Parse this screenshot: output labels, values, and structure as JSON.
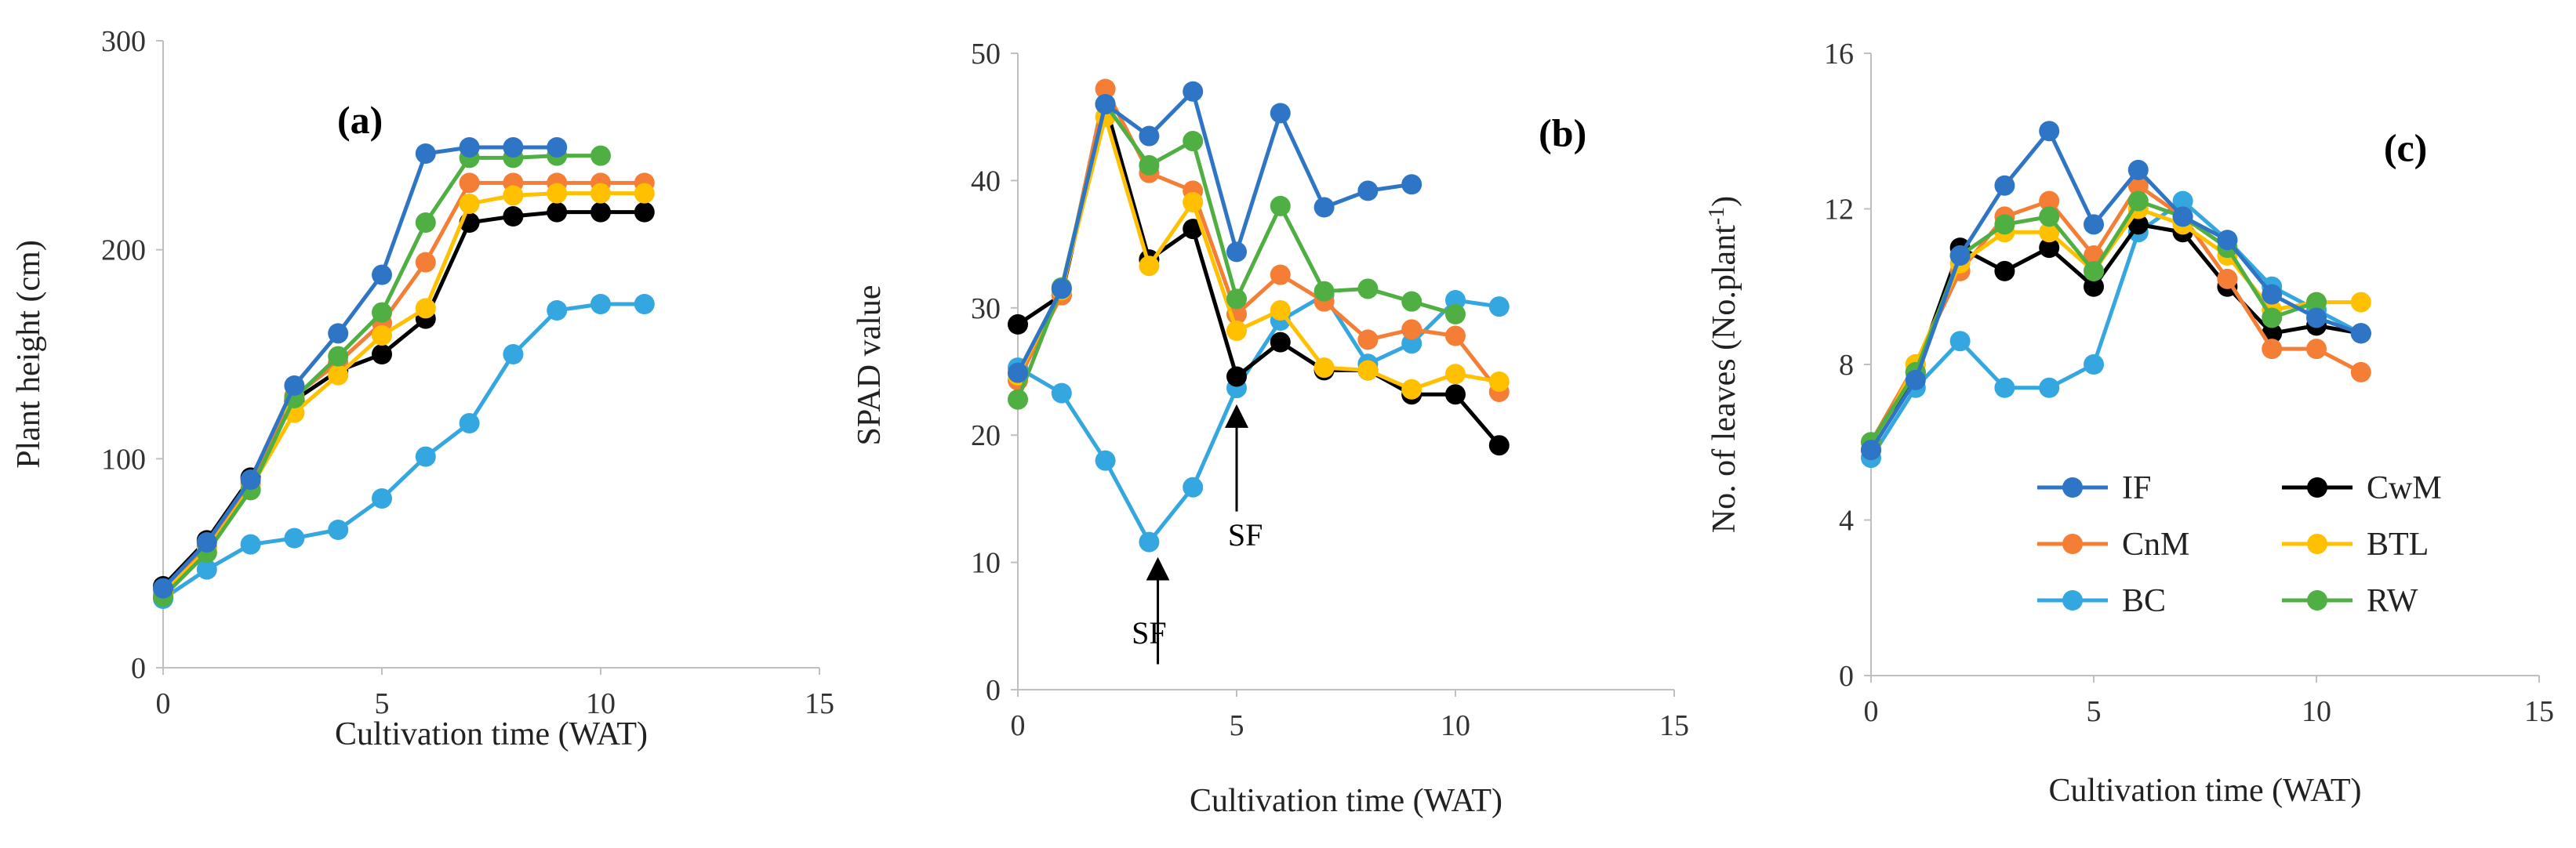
{
  "figure": {
    "legend": [
      {
        "name": "IF",
        "color": "#2E75C6"
      },
      {
        "name": "CwM",
        "color": "#000000"
      },
      {
        "name": "CnM",
        "color": "#F47E36"
      },
      {
        "name": "BTL",
        "color": "#FFC000"
      },
      {
        "name": "BC",
        "color": "#34A7E0"
      },
      {
        "name": "RW",
        "color": "#4FAF42"
      }
    ]
  },
  "chart_data": [
    {
      "type": "line",
      "panel_label": "(a)",
      "xlabel": "Cultivation time (WAT)",
      "ylabel": "Plant height (cm)",
      "xlim": [
        0,
        15
      ],
      "ylim": [
        0,
        300
      ],
      "xticks": [
        0,
        5,
        10,
        15
      ],
      "yticks": [
        0,
        100,
        200,
        300
      ],
      "annotations": [],
      "series": [
        {
          "name": "BC",
          "color": "#34A7E0",
          "x": [
            0,
            1,
            2,
            3,
            4,
            5,
            6,
            7,
            8,
            9,
            10,
            11
          ],
          "values": [
            33,
            47,
            59,
            62,
            66,
            81,
            101,
            117,
            150,
            171,
            174,
            174
          ]
        },
        {
          "name": "CwM",
          "color": "#000000",
          "x": [
            0,
            1,
            2,
            3,
            4,
            5,
            6,
            7,
            8,
            9,
            10,
            11
          ],
          "values": [
            39,
            61,
            91,
            128,
            142,
            150,
            167,
            213,
            216,
            218,
            218,
            218
          ]
        },
        {
          "name": "CnM",
          "color": "#F47E36",
          "x": [
            0,
            1,
            2,
            3,
            4,
            5,
            6,
            7,
            8,
            9,
            10,
            11
          ],
          "values": [
            37,
            58,
            88,
            130,
            146,
            165,
            194,
            232,
            232,
            232,
            232,
            232
          ]
        },
        {
          "name": "BTL",
          "color": "#FFC000",
          "x": [
            0,
            1,
            2,
            3,
            4,
            5,
            6,
            7,
            8,
            9,
            10,
            11
          ],
          "values": [
            36,
            56,
            86,
            122,
            140,
            159,
            172,
            222,
            226,
            227,
            227,
            227
          ]
        },
        {
          "name": "RW",
          "color": "#4FAF42",
          "x": [
            0,
            1,
            2,
            3,
            4,
            5,
            6,
            7,
            8,
            9,
            10
          ],
          "values": [
            34,
            55,
            85,
            129,
            149,
            170,
            213,
            244,
            244,
            245,
            245
          ]
        },
        {
          "name": "IF",
          "color": "#2E75C6",
          "x": [
            0,
            1,
            2,
            3,
            4,
            5,
            6,
            7,
            8,
            9
          ],
          "values": [
            38,
            60,
            90,
            135,
            160,
            188,
            246,
            249,
            249,
            249
          ]
        }
      ]
    },
    {
      "type": "line",
      "panel_label": "(b)",
      "xlabel": "Cultivation time (WAT)",
      "ylabel": "SPAD value",
      "xlim": [
        0,
        15
      ],
      "ylim": [
        0,
        50
      ],
      "xticks": [
        0,
        5,
        10,
        15
      ],
      "yticks": [
        0,
        10,
        20,
        30,
        40,
        50
      ],
      "annotations": [
        {
          "text": "SF",
          "x": 3.0,
          "y": 4.5,
          "arrow_from": [
            3.2,
            2
          ],
          "arrow_to": [
            3.2,
            9.5
          ]
        },
        {
          "text": "SF",
          "x": 5.2,
          "y": 12.2,
          "arrow_from": [
            5.0,
            14
          ],
          "arrow_to": [
            5.0,
            21.5
          ]
        }
      ],
      "series": [
        {
          "name": "BC",
          "color": "#34A7E0",
          "x": [
            0,
            1,
            2,
            3,
            4,
            5,
            6,
            7,
            8,
            9,
            10,
            11
          ],
          "values": [
            25.3,
            23.3,
            18,
            11.6,
            15.9,
            23.7,
            29,
            31,
            25.6,
            27.2,
            30.6,
            30.1
          ]
        },
        {
          "name": "CwM",
          "color": "#000000",
          "x": [
            0,
            1,
            2,
            3,
            4,
            5,
            6,
            7,
            8,
            9,
            10,
            11
          ],
          "values": [
            28.7,
            31,
            46,
            33.8,
            36.2,
            24.6,
            27.3,
            25.1,
            25.1,
            23.2,
            23.2,
            19.2
          ]
        },
        {
          "name": "CnM",
          "color": "#F47E36",
          "x": [
            0,
            1,
            2,
            3,
            4,
            5,
            6,
            7,
            8,
            9,
            10,
            11
          ],
          "values": [
            24.3,
            31,
            47.2,
            40.6,
            39.2,
            29.5,
            32.6,
            30.5,
            27.5,
            28.3,
            27.8,
            23.4
          ]
        },
        {
          "name": "BTL",
          "color": "#FFC000",
          "x": [
            0,
            1,
            2,
            3,
            4,
            5,
            6,
            7,
            8,
            9,
            10,
            11
          ],
          "values": [
            24.7,
            31.4,
            45,
            33.3,
            38.3,
            28.2,
            29.8,
            25.3,
            25.1,
            23.6,
            24.8,
            24.2
          ]
        },
        {
          "name": "RW",
          "color": "#4FAF42",
          "x": [
            0,
            1,
            2,
            3,
            4,
            5,
            6,
            7,
            8,
            9,
            10
          ],
          "values": [
            22.8,
            31.6,
            46,
            41.2,
            43.1,
            30.7,
            38,
            31.3,
            31.5,
            30.5,
            29.5
          ]
        },
        {
          "name": "IF",
          "color": "#2E75C6",
          "x": [
            0,
            1,
            2,
            3,
            4,
            5,
            6,
            7,
            8,
            9
          ],
          "values": [
            24.9,
            31.5,
            46,
            43.5,
            47,
            34.4,
            45.3,
            37.9,
            39.2,
            39.7
          ]
        }
      ]
    },
    {
      "type": "line",
      "panel_label": "(c)",
      "xlabel": "Cultivation time (WAT)",
      "ylabel": "No. of leaves (No.plant",
      "ylabel_superscript": "-1",
      "ylabel_suffix": ")",
      "xlim": [
        0,
        15
      ],
      "ylim": [
        0,
        16
      ],
      "xticks": [
        0,
        5,
        10,
        15
      ],
      "yticks": [
        0,
        4,
        8,
        12,
        16
      ],
      "annotations": [],
      "series": [
        {
          "name": "BC",
          "color": "#34A7E0",
          "x": [
            0,
            1,
            2,
            3,
            4,
            5,
            6,
            7,
            8,
            9,
            10,
            11
          ],
          "values": [
            5.6,
            7.4,
            8.6,
            7.4,
            7.4,
            8,
            11.4,
            12.2,
            11.2,
            10,
            9.4,
            8.8
          ]
        },
        {
          "name": "CwM",
          "color": "#000000",
          "x": [
            0,
            1,
            2,
            3,
            4,
            5,
            6,
            7,
            8,
            9,
            10,
            11
          ],
          "values": [
            5.8,
            7.8,
            11,
            10.4,
            11,
            10,
            11.6,
            11.4,
            10,
            8.8,
            9,
            8.8
          ]
        },
        {
          "name": "CnM",
          "color": "#F47E36",
          "x": [
            0,
            1,
            2,
            3,
            4,
            5,
            6,
            7,
            8,
            9,
            10,
            11
          ],
          "values": [
            6,
            8,
            10.4,
            11.8,
            12.2,
            10.8,
            12.6,
            11.8,
            10.2,
            8.4,
            8.4,
            7.8
          ]
        },
        {
          "name": "BTL",
          "color": "#FFC000",
          "x": [
            0,
            1,
            2,
            3,
            4,
            5,
            6,
            7,
            8,
            9,
            10,
            11
          ],
          "values": [
            5.8,
            8,
            10.6,
            11.4,
            11.4,
            10.4,
            12,
            11.6,
            10.8,
            9.4,
            9.6,
            9.6
          ]
        },
        {
          "name": "RW",
          "color": "#4FAF42",
          "x": [
            0,
            1,
            2,
            3,
            4,
            5,
            6,
            7,
            8,
            9,
            10
          ],
          "values": [
            6,
            7.8,
            10.8,
            11.6,
            11.8,
            10.4,
            12.2,
            11.8,
            11,
            9.2,
            9.6
          ]
        },
        {
          "name": "IF",
          "color": "#2E75C6",
          "x": [
            0,
            1,
            2,
            3,
            4,
            5,
            6,
            7,
            8,
            9,
            10,
            11
          ],
          "values": [
            5.8,
            7.6,
            10.8,
            12.6,
            14,
            11.6,
            13,
            11.8,
            11.2,
            9.8,
            9.2,
            8.8
          ]
        }
      ]
    }
  ]
}
